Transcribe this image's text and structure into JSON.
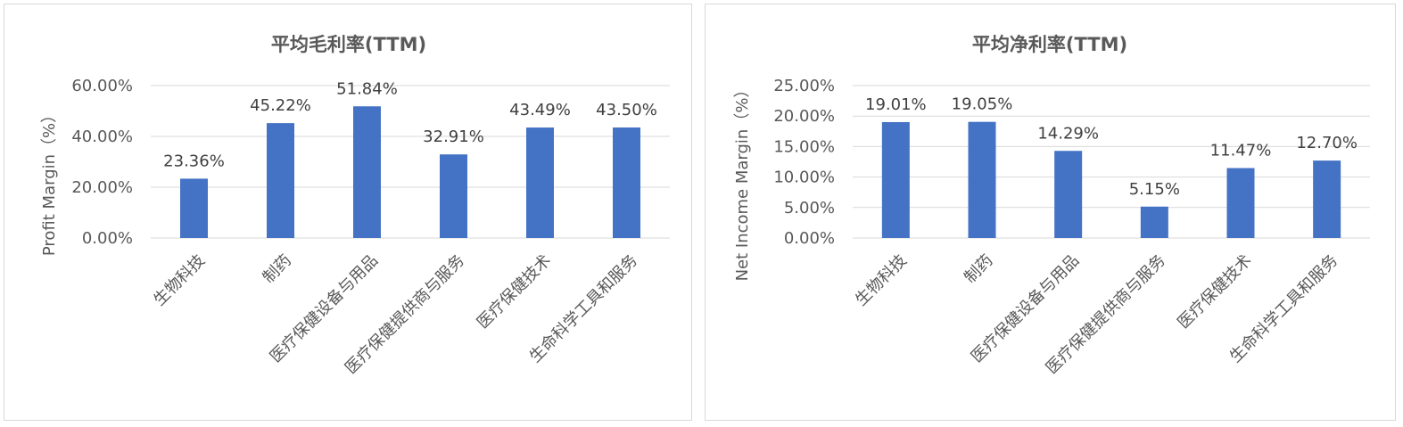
{
  "colors": {
    "bar": "#4472C4",
    "grid": "#d9d9d9",
    "text": "#595959"
  },
  "chart_data": [
    {
      "type": "bar",
      "title": "平均毛利率(TTM)",
      "xlabel": "",
      "ylabel": "Profit Margin（%）",
      "categories": [
        "生物科技",
        "制药",
        "医疗保健设备与用品",
        "医疗保健提供商与服务",
        "医疗保健技术",
        "生命科学工具和服务"
      ],
      "values": [
        23.36,
        45.22,
        51.84,
        32.91,
        43.49,
        43.5
      ],
      "data_labels": [
        "23.36%",
        "45.22%",
        "51.84%",
        "32.91%",
        "43.49%",
        "43.50%"
      ],
      "ylim": [
        0,
        60
      ],
      "yticks": [
        0,
        20,
        40,
        60
      ],
      "ytick_labels": [
        "0.00%",
        "20.00%",
        "40.00%",
        "60.00%"
      ],
      "grid": true,
      "legend": "none"
    },
    {
      "type": "bar",
      "title": "平均净利率(TTM)",
      "xlabel": "",
      "ylabel": "Net Income Margin（%）",
      "categories": [
        "生物科技",
        "制药",
        "医疗保健设备与用品",
        "医疗保健提供商与服务",
        "医疗保健技术",
        "生命科学工具和服务"
      ],
      "values": [
        19.01,
        19.05,
        14.29,
        5.15,
        11.47,
        12.7
      ],
      "data_labels": [
        "19.01%",
        "19.05%",
        "14.29%",
        "5.15%",
        "11.47%",
        "12.70%"
      ],
      "ylim": [
        0,
        25
      ],
      "yticks": [
        0,
        5,
        10,
        15,
        20,
        25
      ],
      "ytick_labels": [
        "0.00%",
        "5.00%",
        "10.00%",
        "15.00%",
        "20.00%",
        "25.00%"
      ],
      "grid": true,
      "legend": "none"
    }
  ]
}
